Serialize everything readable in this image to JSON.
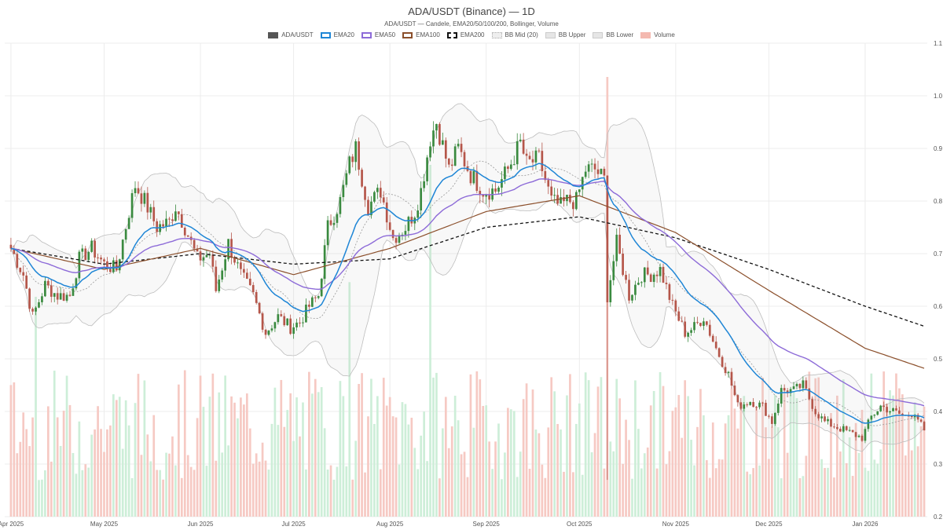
{
  "title": "ADA/USDT (Binance) — 1D",
  "subtitle": "ADA/USDT — Candele, EMA20/50/100/200, Bollinger, Volume",
  "legend": [
    {
      "label": "ADA/USDT",
      "color": "#555555",
      "style": "solid"
    },
    {
      "label": "EMA20",
      "color": "#1f86d6",
      "style": "line"
    },
    {
      "label": "EMA50",
      "color": "#8d6bd8",
      "style": "line"
    },
    {
      "label": "EMA100",
      "color": "#8b4f2b",
      "style": "line"
    },
    {
      "label": "EMA200",
      "color": "#111111",
      "style": "dashed"
    },
    {
      "label": "BB Mid (20)",
      "color": "#aaaaaa",
      "style": "dotted"
    },
    {
      "label": "BB Upper",
      "color": "#cccccc",
      "style": "box"
    },
    {
      "label": "BB Lower",
      "color": "#cccccc",
      "style": "box"
    },
    {
      "label": "Volume",
      "color": "#f4b9b0",
      "style": "solid"
    }
  ],
  "chart_data": {
    "type": "candlestick",
    "x_axis": {
      "ticks": [
        "Apr 2025",
        "May 2025",
        "Jun 2025",
        "Jul 2025",
        "Aug 2025",
        "Sep 2025",
        "Oct 2025",
        "Nov 2025",
        "Dec 2025",
        "Jan 2026"
      ]
    },
    "y_axis": {
      "range": [
        0.2,
        1.1
      ],
      "ticks": [
        "1.1",
        "1.0",
        "0.9",
        "0.8",
        "0.7",
        "0.6",
        "0.5",
        "0.4",
        "0.3",
        "0.2"
      ],
      "position": "right"
    },
    "grid": true,
    "legend_position": "top-center",
    "colors": {
      "up": "#3a8a3f",
      "down": "#b5564a",
      "vol_up": "#cdeed8",
      "vol_down": "#f6c9c3",
      "ema20": "#1f86d6",
      "ema50": "#8d6bd8",
      "ema100": "#8b4f2b",
      "ema200": "#111111",
      "bb": "#bdbdbd"
    },
    "anchors": [
      [
        "2025-04-01",
        0.71
      ],
      [
        "2025-04-05",
        0.66
      ],
      [
        "2025-04-08",
        0.58
      ],
      [
        "2025-04-12",
        0.64
      ],
      [
        "2025-04-16",
        0.62
      ],
      [
        "2025-04-20",
        0.62
      ],
      [
        "2025-04-23",
        0.69
      ],
      [
        "2025-04-27",
        0.71
      ],
      [
        "2025-05-01",
        0.68
      ],
      [
        "2025-05-05",
        0.67
      ],
      [
        "2025-05-09",
        0.78
      ],
      [
        "2025-05-11",
        0.83
      ],
      [
        "2025-05-14",
        0.8
      ],
      [
        "2025-05-18",
        0.75
      ],
      [
        "2025-05-22",
        0.76
      ],
      [
        "2025-05-24",
        0.79
      ],
      [
        "2025-05-27",
        0.75
      ],
      [
        "2025-05-31",
        0.69
      ],
      [
        "2025-06-04",
        0.7
      ],
      [
        "2025-06-06",
        0.63
      ],
      [
        "2025-06-10",
        0.72
      ],
      [
        "2025-06-14",
        0.66
      ],
      [
        "2025-06-18",
        0.62
      ],
      [
        "2025-06-22",
        0.55
      ],
      [
        "2025-06-26",
        0.58
      ],
      [
        "2025-06-30",
        0.56
      ],
      [
        "2025-07-03",
        0.57
      ],
      [
        "2025-07-06",
        0.6
      ],
      [
        "2025-07-09",
        0.62
      ],
      [
        "2025-07-12",
        0.75
      ],
      [
        "2025-07-16",
        0.8
      ],
      [
        "2025-07-19",
        0.87
      ],
      [
        "2025-07-21",
        0.9
      ],
      [
        "2025-07-25",
        0.79
      ],
      [
        "2025-07-29",
        0.82
      ],
      [
        "2025-08-02",
        0.73
      ],
      [
        "2025-08-06",
        0.75
      ],
      [
        "2025-08-09",
        0.78
      ],
      [
        "2025-08-11",
        0.82
      ],
      [
        "2025-08-14",
        0.92
      ],
      [
        "2025-08-16",
        0.95
      ],
      [
        "2025-08-20",
        0.86
      ],
      [
        "2025-08-23",
        0.9
      ],
      [
        "2025-08-27",
        0.85
      ],
      [
        "2025-08-31",
        0.82
      ],
      [
        "2025-09-04",
        0.82
      ],
      [
        "2025-09-08",
        0.86
      ],
      [
        "2025-09-12",
        0.91
      ],
      [
        "2025-09-14",
        0.87
      ],
      [
        "2025-09-18",
        0.88
      ],
      [
        "2025-09-22",
        0.8
      ],
      [
        "2025-09-25",
        0.79
      ],
      [
        "2025-09-27",
        0.8
      ],
      [
        "2025-09-30",
        0.8
      ],
      [
        "2025-10-03",
        0.86
      ],
      [
        "2025-10-06",
        0.86
      ],
      [
        "2025-10-09",
        0.84
      ],
      [
        "2025-10-10",
        0.62
      ],
      [
        "2025-10-13",
        0.72
      ],
      [
        "2025-10-17",
        0.62
      ],
      [
        "2025-10-21",
        0.66
      ],
      [
        "2025-10-24",
        0.66
      ],
      [
        "2025-10-27",
        0.67
      ],
      [
        "2025-10-31",
        0.6
      ],
      [
        "2025-11-04",
        0.55
      ],
      [
        "2025-11-07",
        0.56
      ],
      [
        "2025-11-10",
        0.58
      ],
      [
        "2025-11-14",
        0.52
      ],
      [
        "2025-11-18",
        0.47
      ],
      [
        "2025-11-21",
        0.41
      ],
      [
        "2025-11-25",
        0.42
      ],
      [
        "2025-11-29",
        0.41
      ],
      [
        "2025-12-02",
        0.38
      ],
      [
        "2025-12-05",
        0.44
      ],
      [
        "2025-12-09",
        0.44
      ],
      [
        "2025-12-12",
        0.45
      ],
      [
        "2025-12-16",
        0.4
      ],
      [
        "2025-12-19",
        0.38
      ],
      [
        "2025-12-23",
        0.37
      ],
      [
        "2025-12-27",
        0.36
      ],
      [
        "2025-12-31",
        0.35
      ],
      [
        "2026-01-03",
        0.39
      ],
      [
        "2026-01-06",
        0.41
      ],
      [
        "2026-01-10",
        0.4
      ],
      [
        "2026-01-14",
        0.39
      ],
      [
        "2026-01-17",
        0.4
      ],
      [
        "2026-01-20",
        0.36
      ]
    ],
    "indicator_anchors": {
      "ema200": [
        [
          "2025-04-01",
          0.71
        ],
        [
          "2025-05-01",
          0.68
        ],
        [
          "2025-06-01",
          0.7
        ],
        [
          "2025-07-01",
          0.68
        ],
        [
          "2025-08-01",
          0.69
        ],
        [
          "2025-09-01",
          0.75
        ],
        [
          "2025-10-01",
          0.77
        ],
        [
          "2025-11-01",
          0.73
        ],
        [
          "2025-12-01",
          0.67
        ],
        [
          "2026-01-01",
          0.6
        ],
        [
          "2026-01-21",
          0.56
        ]
      ],
      "ema100": [
        [
          "2025-04-01",
          0.71
        ],
        [
          "2025-05-01",
          0.67
        ],
        [
          "2025-06-01",
          0.71
        ],
        [
          "2025-07-01",
          0.66
        ],
        [
          "2025-08-01",
          0.71
        ],
        [
          "2025-09-01",
          0.78
        ],
        [
          "2025-10-01",
          0.81
        ],
        [
          "2025-11-01",
          0.74
        ],
        [
          "2025-12-01",
          0.63
        ],
        [
          "2026-01-01",
          0.52
        ],
        [
          "2026-01-21",
          0.48
        ]
      ]
    }
  }
}
